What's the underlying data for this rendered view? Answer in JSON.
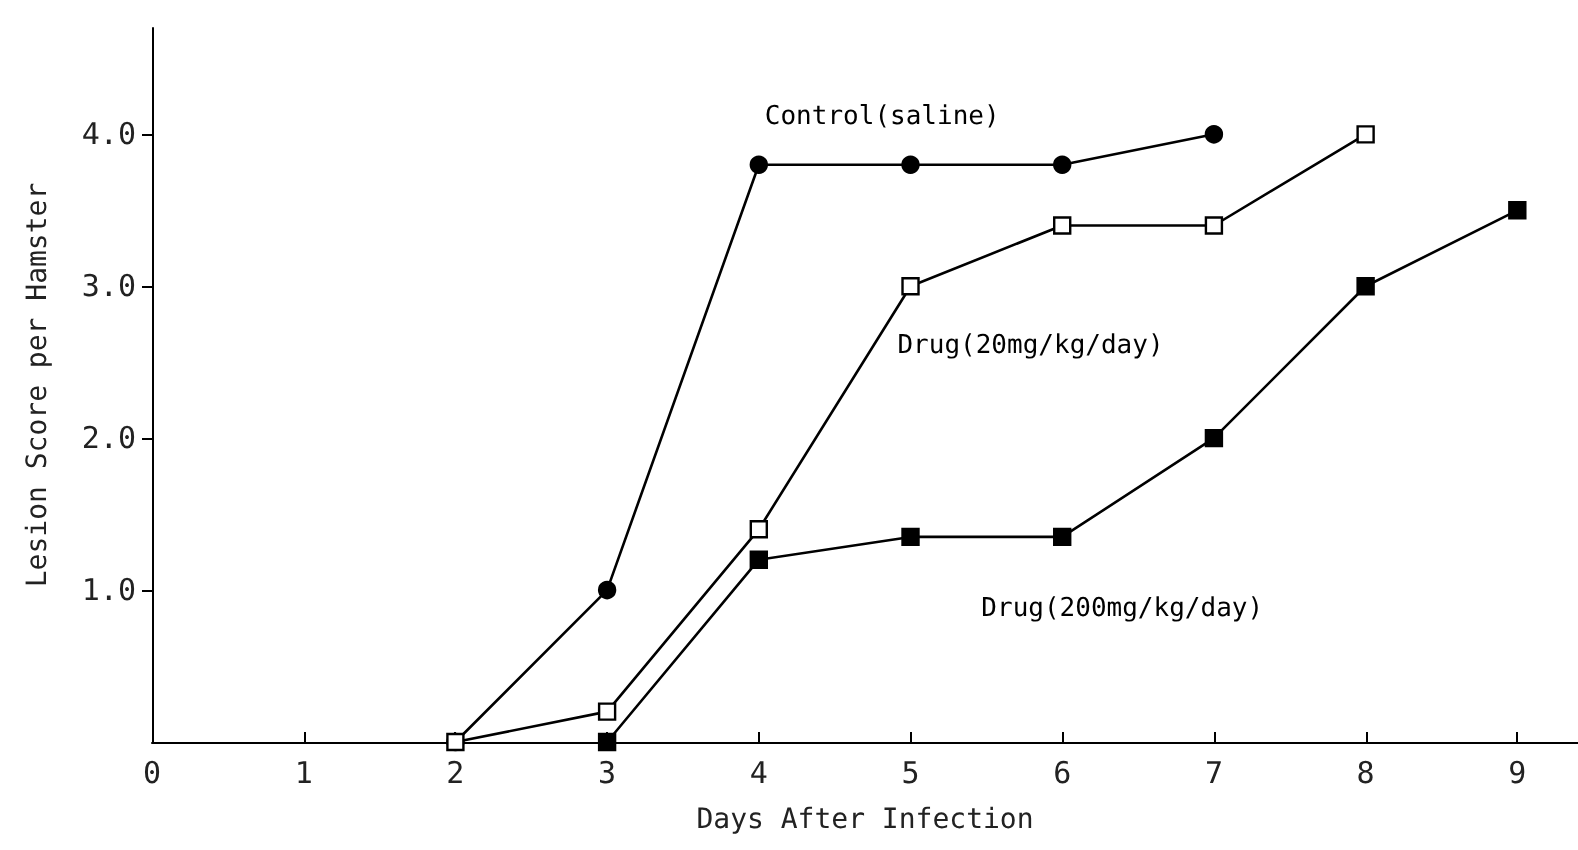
{
  "chart_data": {
    "type": "line",
    "xlabel": "Days After Infection",
    "ylabel": "Lesion Score per Hamster",
    "xlim": [
      0,
      9.4
    ],
    "xticks": [
      0,
      1,
      2,
      3,
      4,
      5,
      6,
      7,
      8,
      9
    ],
    "ylim": [
      0,
      4.7
    ],
    "yticks": [
      {
        "value": 1,
        "label": "1.0"
      },
      {
        "value": 2,
        "label": "2.0"
      },
      {
        "value": 3,
        "label": "3.0"
      },
      {
        "value": 4,
        "label": "4.0"
      }
    ],
    "grid": false,
    "legend": false,
    "series": [
      {
        "name": "Control(saline)",
        "color": "#000000",
        "marker": "circle",
        "x": [
          2,
          3,
          4,
          5,
          6,
          7
        ],
        "values": [
          0,
          1.0,
          3.8,
          3.8,
          3.8,
          4.0
        ]
      },
      {
        "name": "Drug(20mg/kg/day)",
        "color": "#000000",
        "marker": "square",
        "x": [
          2,
          3,
          4,
          5,
          6,
          7,
          8
        ],
        "values": [
          0,
          0.2,
          1.4,
          3.0,
          3.4,
          3.4,
          4.0
        ]
      },
      {
        "name": "Drug(200mg/kg/day)",
        "color": "#000000",
        "marker": "square",
        "x": [
          3,
          4,
          5,
          6,
          7,
          8,
          9
        ],
        "values": [
          0,
          1.2,
          1.35,
          1.35,
          2.0,
          3.0,
          3.5
        ]
      }
    ]
  }
}
